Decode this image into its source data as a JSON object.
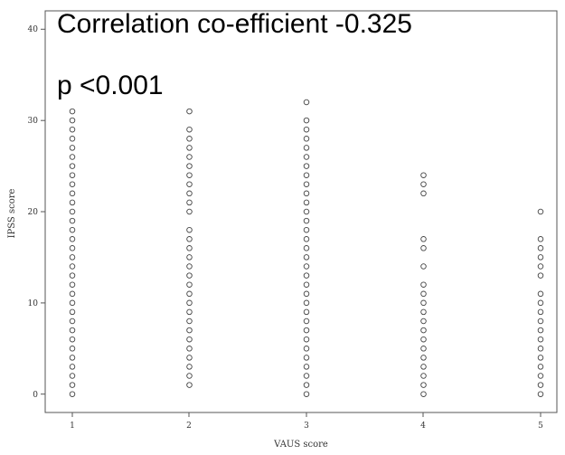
{
  "chart_data": {
    "type": "scatter",
    "xlabel": "VAUS score",
    "ylabel": "IPSS score",
    "xlim": [
      0.7,
      5.3
    ],
    "ylim": [
      -2,
      41
    ],
    "x_ticks": [
      "1",
      "2",
      "3",
      "4",
      "5"
    ],
    "y_ticks": [
      "0",
      "10",
      "20",
      "30",
      "40"
    ],
    "grid": false,
    "marker": "open-circle",
    "annotations": [
      "Correlation co-efficient -0.325",
      "p <0.001"
    ],
    "series": [
      {
        "x": 1,
        "y": [
          0,
          1,
          2,
          3,
          4,
          5,
          6,
          7,
          8,
          9,
          10,
          11,
          12,
          13,
          14,
          15,
          16,
          17,
          18,
          19,
          20,
          21,
          22,
          23,
          24,
          25,
          26,
          27,
          28,
          29,
          30,
          31
        ]
      },
      {
        "x": 2,
        "y": [
          1,
          2,
          3,
          4,
          5,
          6,
          7,
          8,
          9,
          10,
          11,
          12,
          13,
          14,
          15,
          16,
          17,
          18,
          20,
          21,
          22,
          23,
          24,
          25,
          26,
          27,
          28,
          29,
          31
        ]
      },
      {
        "x": 3,
        "y": [
          0,
          1,
          2,
          3,
          4,
          5,
          6,
          7,
          8,
          9,
          10,
          11,
          12,
          13,
          14,
          15,
          16,
          17,
          18,
          19,
          20,
          21,
          22,
          23,
          24,
          25,
          26,
          27,
          28,
          29,
          30,
          32
        ]
      },
      {
        "x": 4,
        "y": [
          0,
          1,
          2,
          3,
          4,
          5,
          6,
          7,
          8,
          9,
          10,
          11,
          12,
          14,
          16,
          17,
          22,
          23,
          24
        ]
      },
      {
        "x": 5,
        "y": [
          0,
          1,
          2,
          3,
          4,
          5,
          6,
          7,
          8,
          9,
          10,
          11,
          13,
          14,
          15,
          16,
          17,
          20
        ]
      }
    ]
  }
}
